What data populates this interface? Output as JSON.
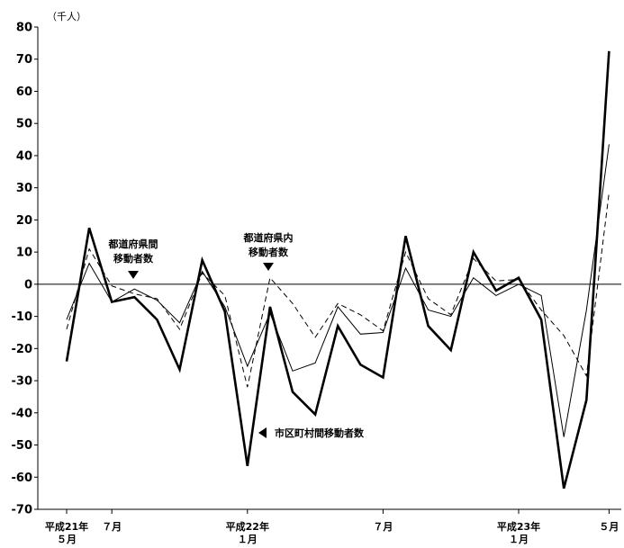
{
  "chart_data": {
    "type": "line",
    "unit_label": "（千人）",
    "ylim": [
      -70,
      80
    ],
    "y_ticks": [
      80,
      70,
      60,
      50,
      40,
      30,
      20,
      10,
      0,
      -10,
      -20,
      -30,
      -40,
      -50,
      -60,
      -70
    ],
    "x_tick_labels": [
      {
        "index": 0,
        "lines": [
          "平成21年",
          "５月"
        ]
      },
      {
        "index": 2,
        "lines": [
          "７月"
        ]
      },
      {
        "index": 8,
        "lines": [
          "平成22年",
          "１月"
        ]
      },
      {
        "index": 14,
        "lines": [
          "７月"
        ]
      },
      {
        "index": 20,
        "lines": [
          "平成23年",
          "１月"
        ]
      },
      {
        "index": 24,
        "lines": [
          "５月"
        ]
      }
    ],
    "series": [
      {
        "name": "市区町村間移動者数",
        "style": "thick",
        "values": [
          -24,
          17.5,
          -5.5,
          -4,
          -11,
          -26.5,
          7.5,
          -8.5,
          -56.5,
          -7,
          -33.5,
          -40.5,
          -13,
          -25,
          -29,
          15,
          -13,
          -20.5,
          10,
          -2,
          2,
          -11,
          -63.5,
          -36,
          72.5
        ]
      },
      {
        "name": "都道府県間移動者数",
        "style": "thin",
        "values": [
          -11,
          6.5,
          -5.5,
          -1.5,
          -5,
          -12,
          4,
          -7,
          -25.5,
          -9,
          -27,
          -24.5,
          -7,
          -15.5,
          -15,
          5,
          -8,
          -10,
          2,
          -3.5,
          0,
          -3.5,
          -47.5,
          -8,
          43.5
        ]
      },
      {
        "name": "都道府県内移動者数",
        "style": "dashed",
        "values": [
          -14,
          11,
          -0.5,
          -3,
          -4.5,
          -14,
          3.5,
          -3.5,
          -32,
          2,
          -6,
          -16.5,
          -6,
          -9.5,
          -14.5,
          10,
          -4.5,
          -9.5,
          8,
          1,
          1.5,
          -8,
          -16,
          -28.5,
          28.5
        ]
      }
    ],
    "annotations": [
      {
        "lines": [
          "都道府県間",
          "移動者数"
        ],
        "target": "都道府県間移動者数"
      },
      {
        "lines": [
          "都道府県内",
          "移動者数"
        ],
        "target": "都道府県内移動者数"
      },
      {
        "lines": [
          "市区町村間移動者数"
        ],
        "target": "市区町村間移動者数"
      }
    ]
  }
}
